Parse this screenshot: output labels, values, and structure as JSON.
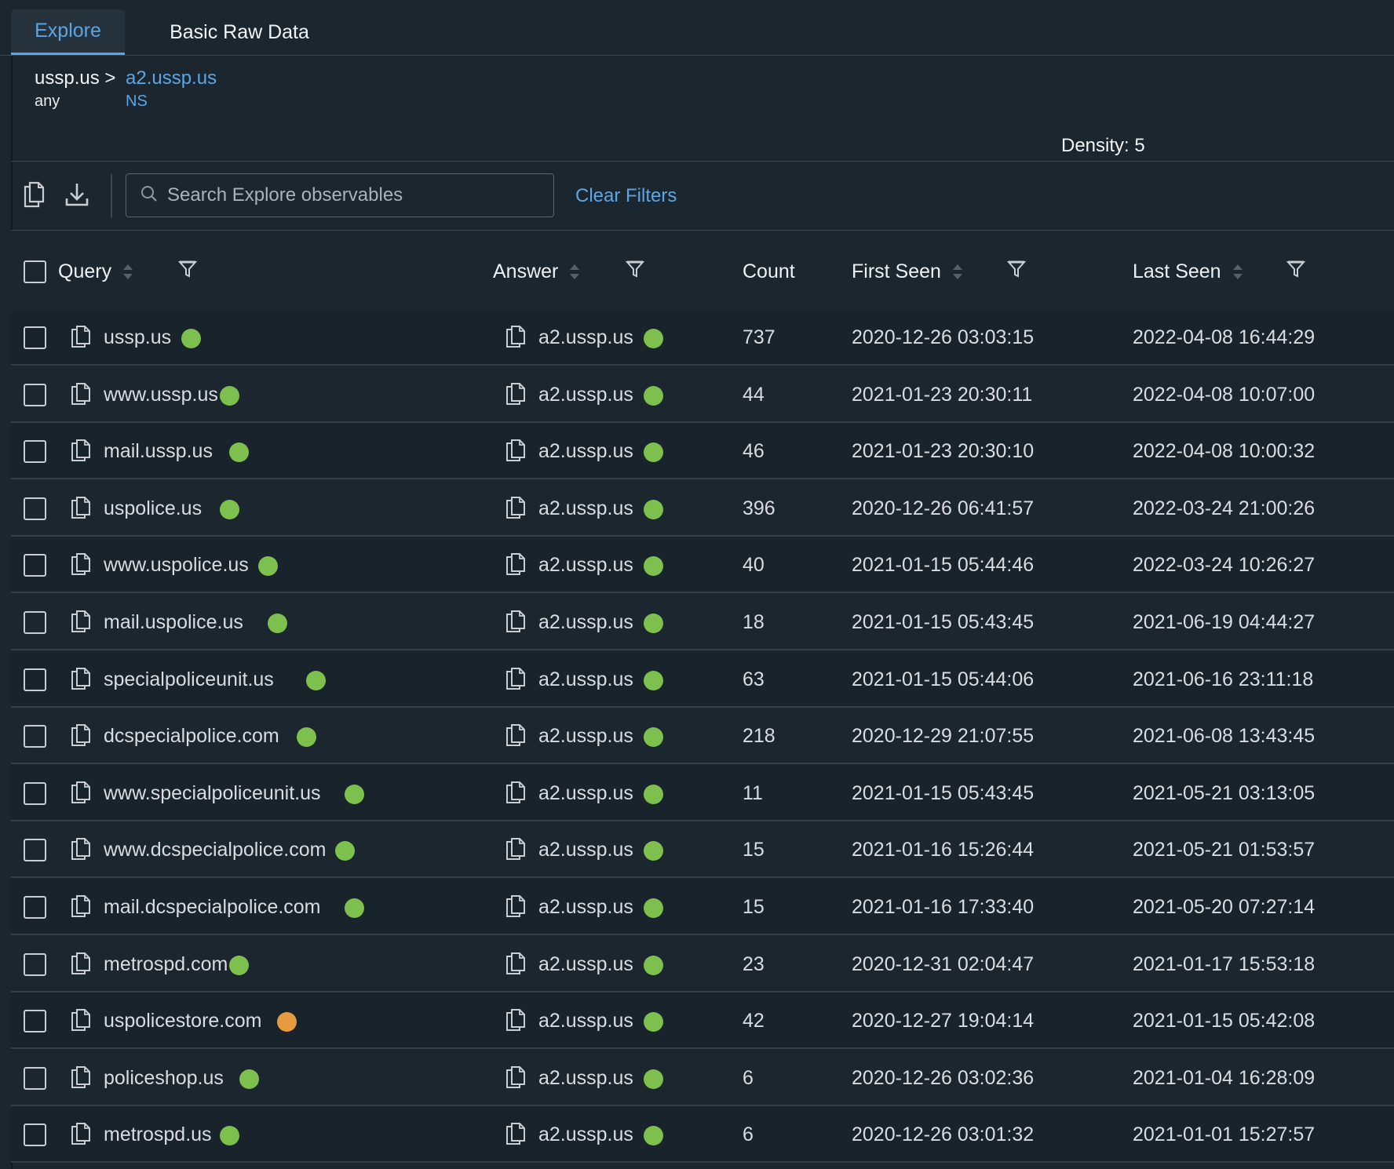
{
  "tabs": [
    {
      "label": "Explore",
      "active": true
    },
    {
      "label": "Basic Raw Data",
      "active": false
    }
  ],
  "breadcrumb": {
    "root": "ussp.us >",
    "current": "a2.ussp.us",
    "root_type": "any",
    "current_type": "NS"
  },
  "density_label": "Density: 5",
  "toolbar": {
    "copy_icon": "copy-icon",
    "download_icon": "download-icon",
    "search_placeholder": "Search Explore observables",
    "clear_filters": "Clear Filters"
  },
  "colors": {
    "green": "#7ec04d",
    "orange": "#e79b3f",
    "accent": "#5aa6e6"
  },
  "columns": [
    "Query",
    "Answer",
    "Count",
    "First Seen",
    "Last Seen"
  ],
  "rows": [
    {
      "query": "ussp.us",
      "query_status": "green",
      "answer": "a2.ussp.us",
      "answer_status": "green",
      "count": "737",
      "first_seen": "2020-12-26 03:03:15",
      "last_seen": "2022-04-08 16:44:29"
    },
    {
      "query": "www.ussp.us",
      "query_status": "green",
      "answer": "a2.ussp.us",
      "answer_status": "green",
      "count": "44",
      "first_seen": "2021-01-23 20:30:11",
      "last_seen": "2022-04-08 10:07:00"
    },
    {
      "query": "mail.ussp.us",
      "query_status": "green",
      "answer": "a2.ussp.us",
      "answer_status": "green",
      "count": "46",
      "first_seen": "2021-01-23 20:30:10",
      "last_seen": "2022-04-08 10:00:32"
    },
    {
      "query": "uspolice.us",
      "query_status": "green",
      "answer": "a2.ussp.us",
      "answer_status": "green",
      "count": "396",
      "first_seen": "2020-12-26 06:41:57",
      "last_seen": "2022-03-24 21:00:26"
    },
    {
      "query": "www.uspolice.us",
      "query_status": "green",
      "answer": "a2.ussp.us",
      "answer_status": "green",
      "count": "40",
      "first_seen": "2021-01-15 05:44:46",
      "last_seen": "2022-03-24 10:26:27"
    },
    {
      "query": "mail.uspolice.us",
      "query_status": "green",
      "answer": "a2.ussp.us",
      "answer_status": "green",
      "count": "18",
      "first_seen": "2021-01-15 05:43:45",
      "last_seen": "2021-06-19 04:44:27"
    },
    {
      "query": "specialpoliceunit.us",
      "query_status": "green",
      "answer": "a2.ussp.us",
      "answer_status": "green",
      "count": "63",
      "first_seen": "2021-01-15 05:44:06",
      "last_seen": "2021-06-16 23:11:18"
    },
    {
      "query": "dcspecialpolice.com",
      "query_status": "green",
      "answer": "a2.ussp.us",
      "answer_status": "green",
      "count": "218",
      "first_seen": "2020-12-29 21:07:55",
      "last_seen": "2021-06-08 13:43:45"
    },
    {
      "query": "www.specialpoliceunit.us",
      "query_status": "green",
      "answer": "a2.ussp.us",
      "answer_status": "green",
      "count": "11",
      "first_seen": "2021-01-15 05:43:45",
      "last_seen": "2021-05-21 03:13:05"
    },
    {
      "query": "www.dcspecialpolice.com",
      "query_status": "green",
      "answer": "a2.ussp.us",
      "answer_status": "green",
      "count": "15",
      "first_seen": "2021-01-16 15:26:44",
      "last_seen": "2021-05-21 01:53:57"
    },
    {
      "query": "mail.dcspecialpolice.com",
      "query_status": "green",
      "answer": "a2.ussp.us",
      "answer_status": "green",
      "count": "15",
      "first_seen": "2021-01-16 17:33:40",
      "last_seen": "2021-05-20 07:27:14"
    },
    {
      "query": "metrospd.com",
      "query_status": "green",
      "answer": "a2.ussp.us",
      "answer_status": "green",
      "count": "23",
      "first_seen": "2020-12-31 02:04:47",
      "last_seen": "2021-01-17 15:53:18"
    },
    {
      "query": "uspolicestore.com",
      "query_status": "orange",
      "answer": "a2.ussp.us",
      "answer_status": "green",
      "count": "42",
      "first_seen": "2020-12-27 19:04:14",
      "last_seen": "2021-01-15 05:42:08"
    },
    {
      "query": "policeshop.us",
      "query_status": "green",
      "answer": "a2.ussp.us",
      "answer_status": "green",
      "count": "6",
      "first_seen": "2020-12-26 03:02:36",
      "last_seen": "2021-01-04 16:28:09"
    },
    {
      "query": "metrospd.us",
      "query_status": "green",
      "answer": "a2.ussp.us",
      "answer_status": "green",
      "count": "6",
      "first_seen": "2020-12-26 03:01:32",
      "last_seen": "2021-01-01 15:27:57"
    }
  ]
}
